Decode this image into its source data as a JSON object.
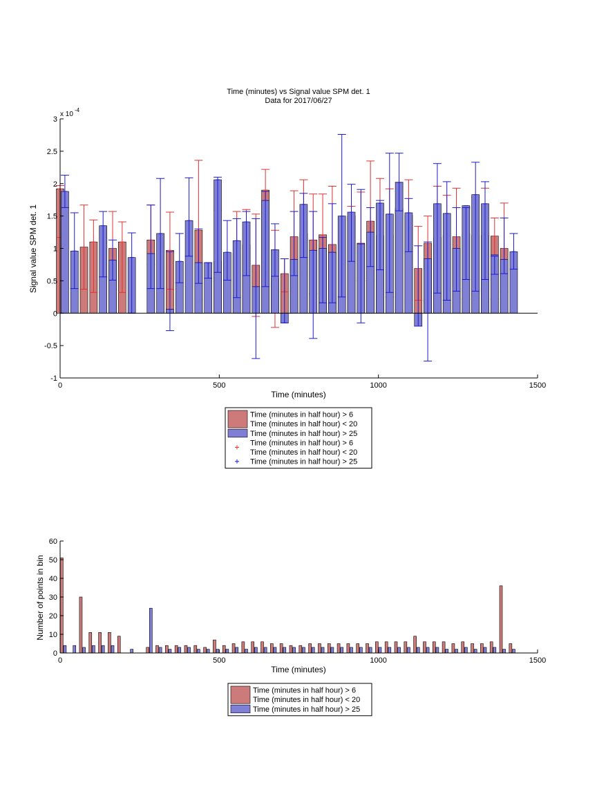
{
  "chart_data": [
    {
      "type": "bar",
      "title": "Time (minutes) vs Signal value SPM det. 1",
      "subtitle": "Data for 2017/06/27",
      "xlabel": "Time (minutes)",
      "ylabel": "Signal value SPM det. 1",
      "y_exponent_label": "x 10",
      "y_exponent_power": "-4",
      "xlim": [
        0,
        1500
      ],
      "ylim": [
        -1,
        3
      ],
      "x_ticks": [
        "0",
        "500",
        "1000",
        "1500"
      ],
      "y_ticks": [
        "-1",
        "-0.5",
        "0",
        "0.5",
        "1",
        "1.5",
        "2",
        "2.5",
        "3"
      ],
      "grid": false,
      "legend_position": "below",
      "legend": [
        "Time (minutes in half hour) > 6\nTime (minutes in half hour) < 20",
        "Time (minutes in half hour) > 25",
        "Time (minutes in half hour) > 6\nTime (minutes in half hour) < 20",
        "Time (minutes in half hour) > 25"
      ],
      "colors": {
        "red_bar": "#cc7a7a",
        "blue_bar": "#7f7fd6",
        "red_err": "#e03030",
        "blue_err": "#1a1acc"
      },
      "series": [
        {
          "color": "red",
          "x": [
            0,
            75,
            105,
            165,
            195,
            285,
            345,
            435,
            495,
            555,
            585,
            615,
            645,
            675,
            705,
            735,
            765,
            795,
            825,
            855,
            915,
            945,
            975,
            1005,
            1035,
            1065,
            1095,
            1125,
            1155,
            1185,
            1215,
            1245,
            1275,
            1305,
            1335,
            1365,
            1395
          ],
          "values": [
            1.92,
            1.02,
            1.1,
            1.0,
            1.1,
            1.13,
            0.97,
            1.28,
            0.8,
            0.92,
            1.06,
            0.74,
            1.9,
            0.54,
            0.61,
            1.18,
            1.23,
            1.13,
            1.21,
            1.06,
            1.5,
            1.08,
            1.42,
            1.2,
            1.2,
            1.62,
            1.51,
            0.69,
            1.08,
            1.17,
            1.2,
            1.18,
            1.23,
            1.2,
            1.2,
            1.19,
            1.0
          ],
          "err_low": [
            1.17,
            0.37,
            0.32,
            0.28,
            0.32,
            0.75,
            0.37,
            0.22,
            0.62,
            0.27,
            0.87,
            -0.05,
            1.56,
            -0.22,
            0.33,
            0.34,
            0.58,
            0.3,
            0.56,
            0.15,
            0.27,
            0.5,
            0.5,
            0.05,
            0.25,
            0.05,
            0.2,
            0.2,
            0.2,
            0.25,
            0.2,
            0.26,
            0.22,
            0.3,
            0.34,
            0.22,
            0.33
          ],
          "err_high": [
            1.97,
            1.67,
            1.44,
            1.57,
            1.41,
            1.67,
            1.56,
            2.36,
            1.59,
            1.57,
            1.6,
            1.53,
            2.22,
            1.28,
            0.84,
            1.89,
            2.06,
            1.84,
            1.84,
            1.96,
            1.65,
            1.87,
            2.35,
            2.08,
            1.92,
            2.02,
            2.06,
            1.34,
            1.5,
            1.96,
            1.82,
            1.93,
            1.61,
            1.79,
            1.93,
            1.47,
            1.7
          ]
        },
        {
          "color": "blue",
          "x": [
            15,
            45,
            135,
            165,
            225,
            285,
            315,
            345,
            375,
            405,
            435,
            465,
            495,
            525,
            555,
            585,
            615,
            645,
            675,
            705,
            735,
            765,
            795,
            825,
            855,
            885,
            915,
            945,
            975,
            1005,
            1035,
            1065,
            1095,
            1125,
            1155,
            1185,
            1215,
            1245,
            1275,
            1305,
            1335,
            1365,
            1395,
            1425
          ],
          "values": [
            1.88,
            0.96,
            1.35,
            0.82,
            0.86,
            0.92,
            1.23,
            0.06,
            0.8,
            1.43,
            0.78,
            0.78,
            2.06,
            0.94,
            1.12,
            1.41,
            0.41,
            1.74,
            0.98,
            -0.15,
            0.83,
            1.68,
            0.97,
            1.0,
            0.94,
            1.5,
            1.56,
            1.07,
            1.25,
            1.7,
            1.53,
            2.02,
            1.55,
            -0.2,
            0.84,
            1.69,
            1.54,
            1.0,
            1.66,
            1.83,
            1.69,
            0.9,
            0.83,
            0.95
          ],
          "err_low": [
            1.63,
            0.38,
            0.56,
            0.51,
            0.0,
            0.38,
            0.38,
            -0.27,
            0.47,
            0.88,
            0.46,
            0.54,
            0.63,
            0.51,
            0.24,
            0.58,
            -0.7,
            0.41,
            0.57,
            -0.15,
            0.58,
            0.86,
            -0.39,
            0.16,
            0.16,
            0.25,
            0.8,
            -0.15,
            0.72,
            0.67,
            0.32,
            1.58,
            0.95,
            -0.2,
            -0.74,
            0.31,
            0.2,
            0.34,
            0.52,
            0.34,
            0.52,
            0.6,
            0.61,
            0.68
          ],
          "err_high": [
            2.13,
            1.55,
            1.57,
            1.13,
            1.24,
            1.67,
            2.08,
            0.95,
            1.23,
            2.09,
            1.3,
            0.78,
            2.1,
            1.43,
            1.46,
            1.57,
            1.46,
            1.88,
            1.38,
            0.84,
            1.57,
            1.85,
            1.57,
            1.17,
            1.69,
            2.76,
            1.99,
            1.91,
            1.63,
            1.74,
            2.47,
            2.47,
            1.77,
            1.04,
            1.1,
            2.31,
            2.03,
            1.63,
            1.63,
            2.33,
            2.03,
            0.88,
            1.47,
            1.23
          ]
        }
      ]
    },
    {
      "type": "bar",
      "xlabel": "Time (minutes)",
      "ylabel": "Number of points in bin",
      "xlim": [
        0,
        1500
      ],
      "ylim": [
        0,
        60
      ],
      "x_ticks": [
        "0",
        "500",
        "1000",
        "1500"
      ],
      "y_ticks": [
        "0",
        "10",
        "20",
        "30",
        "40",
        "50",
        "60"
      ],
      "grid": false,
      "legend_position": "below",
      "legend": [
        "Time (minutes in half hour) > 6\nTime (minutes in half hour) < 20",
        "Time (minutes in half hour) > 25"
      ],
      "series": [
        {
          "color": "red",
          "x": [
            5,
            65,
            95,
            125,
            155,
            185,
            275,
            305,
            335,
            365,
            395,
            425,
            455,
            485,
            515,
            545,
            575,
            605,
            635,
            665,
            695,
            725,
            755,
            785,
            815,
            845,
            875,
            905,
            935,
            965,
            995,
            1025,
            1055,
            1085,
            1115,
            1145,
            1175,
            1205,
            1235,
            1265,
            1295,
            1325,
            1355,
            1385,
            1415
          ],
          "values": [
            51,
            30,
            11,
            11,
            11,
            9,
            3,
            4,
            4,
            4,
            4,
            4,
            3,
            7,
            4,
            5,
            6,
            6,
            6,
            5,
            5,
            4,
            4,
            5,
            5,
            5,
            5,
            5,
            5,
            5,
            6,
            6,
            6,
            6,
            9,
            6,
            6,
            6,
            5,
            6,
            5,
            5,
            6,
            36,
            5
          ]
        },
        {
          "color": "blue",
          "x": [
            15,
            45,
            75,
            105,
            135,
            165,
            225,
            285,
            315,
            345,
            375,
            405,
            435,
            465,
            495,
            525,
            555,
            585,
            615,
            645,
            675,
            705,
            735,
            765,
            795,
            825,
            855,
            885,
            915,
            945,
            975,
            1005,
            1035,
            1065,
            1095,
            1125,
            1155,
            1185,
            1215,
            1245,
            1275,
            1305,
            1335,
            1365,
            1395,
            1425
          ],
          "values": [
            4,
            4,
            3,
            4,
            4,
            4,
            2,
            24,
            3,
            2,
            3,
            3,
            2,
            2,
            2,
            2,
            3,
            2,
            3,
            3,
            3,
            3,
            3,
            3,
            3,
            3,
            3,
            3,
            3,
            3,
            3,
            3,
            3,
            3,
            3,
            3,
            3,
            3,
            2,
            2,
            3,
            2,
            3,
            3,
            2,
            2
          ]
        }
      ]
    }
  ]
}
